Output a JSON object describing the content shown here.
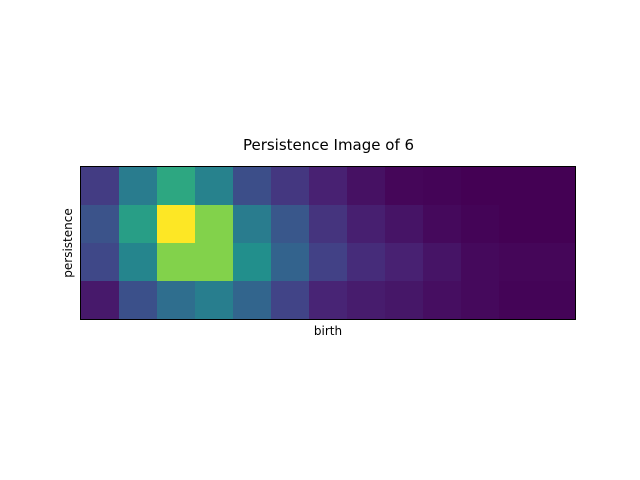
{
  "chart_data": {
    "type": "heatmap",
    "title": "Persistence Image of 6",
    "xlabel": "birth",
    "ylabel": "persistence",
    "colormap": "viridis",
    "value_range": [
      0,
      1
    ],
    "grid": false,
    "legend": "none",
    "x_ticks": [],
    "y_ticks": [],
    "rows": [
      [
        0.22,
        0.52,
        0.7,
        0.55,
        0.3,
        0.2,
        0.12,
        0.06,
        0.02,
        0.01,
        0.0,
        0.0,
        0.0
      ],
      [
        0.32,
        0.67,
        1.0,
        0.86,
        0.52,
        0.34,
        0.19,
        0.11,
        0.07,
        0.03,
        0.01,
        0.0,
        0.0
      ],
      [
        0.27,
        0.57,
        0.86,
        0.86,
        0.62,
        0.4,
        0.24,
        0.16,
        0.12,
        0.07,
        0.03,
        0.02,
        0.02
      ],
      [
        0.09,
        0.31,
        0.45,
        0.53,
        0.41,
        0.25,
        0.13,
        0.1,
        0.08,
        0.05,
        0.03,
        0.01,
        0.01
      ]
    ]
  }
}
